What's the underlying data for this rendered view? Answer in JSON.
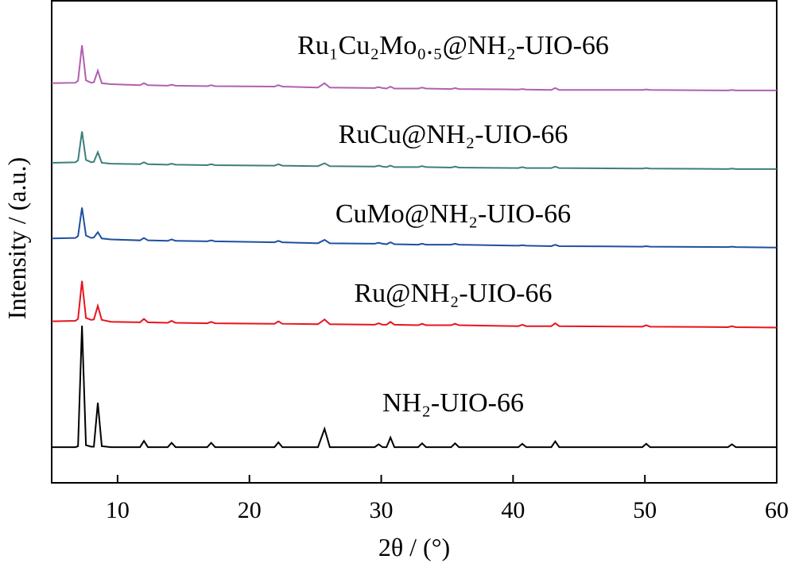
{
  "chart_data": {
    "type": "line",
    "xlabel": "2θ / (°)",
    "ylabel": "Intensity / (a.u.)",
    "xlim": [
      5,
      60
    ],
    "xticks": [
      10,
      20,
      30,
      40,
      50,
      60
    ],
    "ylim": [
      0,
      100
    ],
    "x": [
      5,
      6.8,
      7.0,
      7.3,
      7.6,
      8.0,
      8.2,
      8.5,
      8.8,
      9.5,
      11.7,
      12.0,
      12.3,
      13.8,
      14.1,
      14.4,
      16.8,
      17.1,
      17.4,
      21.9,
      22.2,
      22.5,
      25.2,
      25.7,
      26.1,
      29.5,
      29.8,
      30.1,
      30.4,
      30.7,
      31.0,
      32.8,
      33.1,
      33.4,
      35.3,
      35.6,
      35.9,
      40.4,
      40.7,
      41.0,
      42.9,
      43.2,
      43.5,
      49.8,
      50.1,
      50.4,
      56.3,
      56.6,
      56.9,
      60
    ],
    "series": [
      {
        "name": "NH₂-UIO-66",
        "color": "#000000",
        "values": [
          7.4,
          7.4,
          7.6,
          32.6,
          7.8,
          7.5,
          7.5,
          16.6,
          7.6,
          7.4,
          7.4,
          8.7,
          7.4,
          7.4,
          8.3,
          7.4,
          7.4,
          8.3,
          7.4,
          7.4,
          8.4,
          7.4,
          7.4,
          11.2,
          7.4,
          7.4,
          8.0,
          7.4,
          7.4,
          9.4,
          7.4,
          7.4,
          8.2,
          7.4,
          7.4,
          8.2,
          7.4,
          7.4,
          8.1,
          7.4,
          7.4,
          8.6,
          7.4,
          7.4,
          8.1,
          7.4,
          7.4,
          8.0,
          7.4,
          7.4
        ]
      },
      {
        "name": "Ru@NH₂-UIO-66",
        "color": "#e8141c",
        "values": [
          33.5,
          33.6,
          34.0,
          41.9,
          34.2,
          33.8,
          33.9,
          36.7,
          33.8,
          33.4,
          33.3,
          34.0,
          33.3,
          33.2,
          33.6,
          33.2,
          33.1,
          33.4,
          33.1,
          33.0,
          33.5,
          33.0,
          32.9,
          33.9,
          32.9,
          32.8,
          33.1,
          32.8,
          32.8,
          33.4,
          32.8,
          32.7,
          33.0,
          32.7,
          32.7,
          33.0,
          32.7,
          32.5,
          32.8,
          32.5,
          32.5,
          33.1,
          32.5,
          32.4,
          32.7,
          32.4,
          32.3,
          32.5,
          32.3,
          32.2
        ]
      },
      {
        "name": "CuMo@NH₂-UIO-66",
        "color": "#1f4fa0",
        "values": [
          50.7,
          50.8,
          51.2,
          57.1,
          51.3,
          50.8,
          50.9,
          52.0,
          50.7,
          50.5,
          50.3,
          50.8,
          50.3,
          50.2,
          50.5,
          50.2,
          50.1,
          50.3,
          50.1,
          49.9,
          50.2,
          49.9,
          49.7,
          50.4,
          49.7,
          49.6,
          49.8,
          49.6,
          49.5,
          49.9,
          49.5,
          49.4,
          49.6,
          49.4,
          49.4,
          49.6,
          49.4,
          49.2,
          49.3,
          49.2,
          49.1,
          49.4,
          49.1,
          49.0,
          49.1,
          49.0,
          48.9,
          49.0,
          48.9,
          48.8
        ]
      },
      {
        "name": "RuCu@NH₂-UIO-66",
        "color": "#3d7f7a",
        "values": [
          66.4,
          66.5,
          66.9,
          72.9,
          67.0,
          66.5,
          66.6,
          68.6,
          66.4,
          66.2,
          66.1,
          66.5,
          66.1,
          66.0,
          66.2,
          66.0,
          65.9,
          66.1,
          65.9,
          65.8,
          66.1,
          65.8,
          65.7,
          66.3,
          65.7,
          65.6,
          65.8,
          65.6,
          65.5,
          65.8,
          65.5,
          65.5,
          65.7,
          65.5,
          65.4,
          65.6,
          65.4,
          65.3,
          65.5,
          65.3,
          65.3,
          65.6,
          65.3,
          65.2,
          65.3,
          65.2,
          65.1,
          65.2,
          65.1,
          65.1
        ]
      },
      {
        "name": "Ru₁Cu₂Mo₀.₅@NH₂-UIO-66",
        "color": "#b060b0",
        "values": [
          82.9,
          83.0,
          83.4,
          90.8,
          83.5,
          83.0,
          83.1,
          85.5,
          82.9,
          82.7,
          82.5,
          82.9,
          82.5,
          82.4,
          82.6,
          82.4,
          82.3,
          82.5,
          82.3,
          82.2,
          82.5,
          82.2,
          82.0,
          82.9,
          82.0,
          81.9,
          82.1,
          81.9,
          81.8,
          82.2,
          81.8,
          81.8,
          82.0,
          81.8,
          81.7,
          81.9,
          81.7,
          81.6,
          81.7,
          81.6,
          81.5,
          81.9,
          81.5,
          81.5,
          81.6,
          81.5,
          81.4,
          81.5,
          81.4,
          81.4
        ]
      }
    ]
  }
}
